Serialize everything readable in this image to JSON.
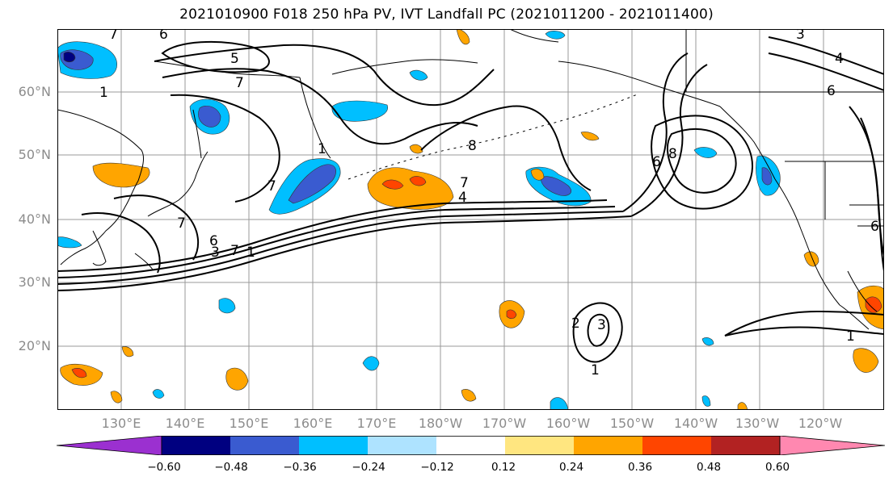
{
  "title": "2021010900 F018 250 hPa PV, IVT Landfall PC (2021011200 - 2021011400)",
  "lat_labels": [
    "60°N",
    "50°N",
    "40°N",
    "30°N",
    "20°N"
  ],
  "lon_labels": [
    "130°E",
    "140°E",
    "150°E",
    "160°E",
    "170°E",
    "180°W",
    "170°W",
    "160°W",
    "150°W",
    "140°W",
    "130°W",
    "120°W"
  ],
  "contour_labels": [
    "7",
    "6",
    "5",
    "7",
    "1",
    "1",
    "7",
    "7",
    "6",
    "3",
    "7",
    "1",
    "7",
    "4",
    "8",
    "6",
    "8",
    "3",
    "4",
    "6",
    "6",
    "2",
    "3",
    "1",
    "1"
  ],
  "colorbar": {
    "tick_labels": [
      "−0.60",
      "−0.48",
      "−0.36",
      "−0.24",
      "−0.12",
      "0.12",
      "0.24",
      "0.36",
      "0.48",
      "0.60"
    ],
    "colors": [
      "#9b30d0",
      "#000080",
      "#3a5bd0",
      "#00bfff",
      "#aee3ff",
      "#ffffff",
      "#ffe680",
      "#ffa500",
      "#ff4500",
      "#b22222",
      "#ff88b0"
    ]
  },
  "fill_colors": {
    "neg_light": "#aee3ff",
    "neg_mid": "#00bfff",
    "neg_strong": "#3a5bd0",
    "neg_max": "#000080",
    "pos_light": "#ffe680",
    "pos_mid": "#ffa500",
    "pos_strong": "#ff4500",
    "pos_max": "#b22222"
  }
}
